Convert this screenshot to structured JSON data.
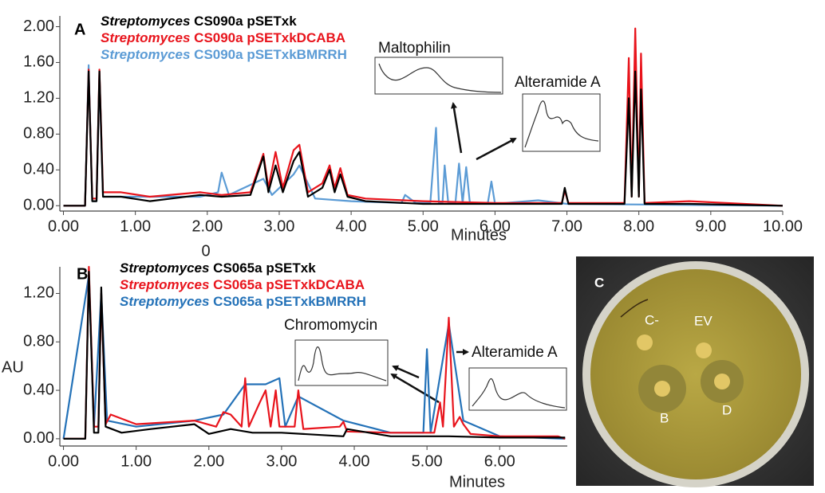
{
  "chart_data": [
    {
      "type": "line",
      "panel_label": "A",
      "x_label": "Minutes",
      "annotations": [
        "Maltophilin",
        "Alteramide A",
        "0"
      ],
      "xlim": [
        -0.05,
        10
      ],
      "ylim": [
        -0.06,
        2.12
      ],
      "xticks": [
        {
          "value": 0,
          "label": "0.00"
        },
        {
          "value": 1,
          "label": "1.00"
        },
        {
          "value": 2,
          "label": "2.00"
        },
        {
          "value": 3,
          "label": "3.00"
        },
        {
          "value": 4,
          "label": "4.00"
        },
        {
          "value": 5,
          "label": "5.00"
        },
        {
          "value": 6,
          "label": "6.00"
        },
        {
          "value": 7,
          "label": "7.00"
        },
        {
          "value": 8,
          "label": "8.00"
        },
        {
          "value": 9,
          "label": "9.00"
        },
        {
          "value": 10,
          "label": "10.00"
        }
      ],
      "yticks": [
        {
          "value": 0,
          "label": "0.00"
        },
        {
          "value": 0.4,
          "label": "0.40"
        },
        {
          "value": 0.8,
          "label": "0.80"
        },
        {
          "value": 1.2,
          "label": "1.20"
        },
        {
          "value": 1.6,
          "label": "1.60"
        },
        {
          "value": 2,
          "label": "2.00"
        }
      ],
      "grid": false,
      "series": [
        {
          "name": "Streptomyces CS090a pSETxk",
          "color": "#000000",
          "x": [
            0,
            0.3,
            0.35,
            0.4,
            0.46,
            0.5,
            0.55,
            0.8,
            1.2,
            1.9,
            2.2,
            2.6,
            2.78,
            2.85,
            2.95,
            3.05,
            3.2,
            3.28,
            3.4,
            3.6,
            3.7,
            3.77,
            3.85,
            3.95,
            4.2,
            5.0,
            6.0,
            6.93,
            6.97,
            7.02,
            7.8,
            7.86,
            7.9,
            7.95,
            8.0,
            8.03,
            8.08,
            8.7,
            10
          ],
          "values": [
            0,
            0,
            1.5,
            0.05,
            0.05,
            1.5,
            0.1,
            0.1,
            0.05,
            0.12,
            0.1,
            0.12,
            0.55,
            0.15,
            0.45,
            0.15,
            0.5,
            0.6,
            0.1,
            0.2,
            0.4,
            0.15,
            0.35,
            0.1,
            0.05,
            0.02,
            0.02,
            0.02,
            0.2,
            0.02,
            0.02,
            1.2,
            0.1,
            1.5,
            0.1,
            1.3,
            0.02,
            0.02,
            0
          ]
        },
        {
          "name": "Streptomyces CS090a pSETxkDCABA",
          "color": "#e8141c",
          "x": [
            0,
            0.3,
            0.35,
            0.4,
            0.46,
            0.5,
            0.55,
            0.8,
            1.2,
            1.9,
            2.2,
            2.6,
            2.78,
            2.85,
            2.95,
            3.05,
            3.2,
            3.28,
            3.4,
            3.6,
            3.7,
            3.77,
            3.85,
            3.95,
            4.2,
            5.0,
            6.0,
            6.93,
            6.97,
            7.02,
            7.8,
            7.86,
            7.9,
            7.95,
            8.0,
            8.03,
            8.08,
            8.7,
            10
          ],
          "values": [
            0,
            0,
            1.52,
            0.08,
            0.08,
            1.52,
            0.15,
            0.15,
            0.1,
            0.15,
            0.12,
            0.15,
            0.58,
            0.2,
            0.6,
            0.2,
            0.62,
            0.68,
            0.15,
            0.25,
            0.45,
            0.2,
            0.42,
            0.12,
            0.08,
            0.05,
            0.03,
            0.03,
            0.17,
            0.03,
            0.03,
            1.65,
            0.1,
            1.98,
            0.1,
            1.7,
            0.03,
            0.05,
            0
          ]
        },
        {
          "name": "Streptomyces CS090a pSETxkBMRRH",
          "color": "#5b9bd5",
          "x": [
            0,
            0.3,
            0.35,
            0.4,
            0.46,
            0.5,
            0.55,
            1.0,
            1.9,
            2.15,
            2.2,
            2.3,
            2.78,
            2.9,
            3.2,
            3.28,
            3.5,
            4.0,
            4.7,
            4.75,
            4.9,
            5.1,
            5.18,
            5.22,
            5.27,
            5.3,
            5.35,
            5.45,
            5.5,
            5.55,
            5.6,
            5.65,
            5.9,
            5.95,
            6.0,
            6.6,
            7.0,
            10
          ],
          "values": [
            0,
            0,
            1.57,
            0.05,
            0.05,
            1.45,
            0.1,
            0.1,
            0.1,
            0.15,
            0.37,
            0.12,
            0.3,
            0.12,
            0.35,
            0.45,
            0.08,
            0.05,
            0.03,
            0.12,
            0.03,
            0.03,
            0.87,
            0.03,
            0.03,
            0.45,
            0.03,
            0.03,
            0.47,
            0.03,
            0.43,
            0.03,
            0.03,
            0.27,
            0.02,
            0.06,
            0.02,
            0
          ]
        }
      ]
    },
    {
      "type": "line",
      "panel_label": "B",
      "x_label": "Minutes",
      "y_label": "AU",
      "annotations": [
        "Chromomycin",
        "Alteramide A"
      ],
      "xlim": [
        -0.05,
        6.93
      ],
      "ylim": [
        -0.06,
        1.42
      ],
      "xticks": [
        {
          "value": 0,
          "label": "0.00"
        },
        {
          "value": 1,
          "label": "1.00"
        },
        {
          "value": 2,
          "label": "2.00"
        },
        {
          "value": 3,
          "label": "3.00"
        },
        {
          "value": 4,
          "label": "4.00"
        },
        {
          "value": 5,
          "label": "5.00"
        },
        {
          "value": 6,
          "label": "6.00"
        }
      ],
      "yticks": [
        {
          "value": 0,
          "label": "0.00"
        },
        {
          "value": 0.4,
          "label": "0.40"
        },
        {
          "value": 0.8,
          "label": "0.80"
        },
        {
          "value": 1.2,
          "label": "1.20"
        }
      ],
      "grid": false,
      "series": [
        {
          "name": "Streptomyces CS065a pSETxk",
          "color": "#000000",
          "x": [
            0,
            0.3,
            0.35,
            0.42,
            0.48,
            0.52,
            0.58,
            0.8,
            1.2,
            1.8,
            2.0,
            2.3,
            2.6,
            3.0,
            3.85,
            3.9,
            4.5,
            5.0,
            5.3,
            6.0,
            6.9
          ],
          "values": [
            0,
            0,
            1.38,
            0.05,
            0.05,
            1.25,
            0.1,
            0.05,
            0.08,
            0.12,
            0.04,
            0.08,
            0.05,
            0.05,
            0.02,
            0.08,
            0.02,
            0.02,
            0.02,
            0.01,
            0.01
          ]
        },
        {
          "name": "Streptomyces CS065a pSETxkDCABA",
          "color": "#e8141c",
          "x": [
            0,
            0.3,
            0.35,
            0.42,
            0.48,
            0.52,
            0.58,
            0.65,
            1.0,
            1.8,
            2.1,
            2.2,
            2.3,
            2.45,
            2.5,
            2.55,
            2.7,
            2.78,
            2.85,
            2.92,
            2.97,
            3.05,
            3.18,
            3.23,
            3.3,
            3.8,
            3.85,
            3.9,
            4.5,
            5.1,
            5.18,
            5.22,
            5.3,
            5.37,
            5.45,
            5.5,
            5.6,
            6.0,
            6.8,
            6.9
          ],
          "values": [
            0,
            0,
            1.42,
            0.1,
            0.1,
            1.2,
            0.12,
            0.2,
            0.12,
            0.15,
            0.1,
            0.22,
            0.2,
            0.1,
            0.5,
            0.1,
            0.3,
            0.4,
            0.1,
            0.4,
            0.1,
            0.1,
            0.1,
            0.4,
            0.08,
            0.1,
            0.14,
            0.06,
            0.05,
            0.05,
            0.3,
            0.1,
            1.0,
            0.1,
            0.18,
            0.12,
            0.04,
            0.02,
            0.02,
            0
          ]
        },
        {
          "name": "Streptomyces CS065a pSETxkBMRRH",
          "color": "#2472b8",
          "x": [
            0,
            0.35,
            0.42,
            0.52,
            0.6,
            1.0,
            1.8,
            2.2,
            2.5,
            2.78,
            2.97,
            3.05,
            3.23,
            3.85,
            4.5,
            4.95,
            5.0,
            5.05,
            5.3,
            5.5,
            6.0,
            6.9
          ],
          "values": [
            0,
            1.35,
            0.1,
            1.2,
            0.15,
            0.1,
            0.15,
            0.2,
            0.45,
            0.45,
            0.5,
            0.1,
            0.35,
            0.15,
            0.05,
            0.05,
            0.74,
            0.05,
            0.95,
            0.15,
            0.02,
            0
          ]
        }
      ]
    }
  ],
  "photo": {
    "panel_label": "C",
    "spots": [
      "C-",
      "EV",
      "B",
      "D"
    ]
  }
}
